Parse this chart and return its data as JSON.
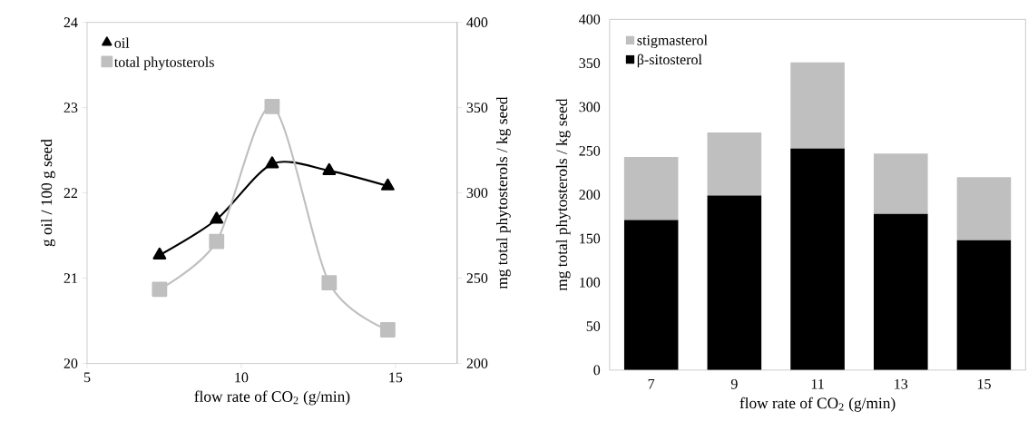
{
  "chart_data": [
    {
      "type": "line",
      "xlabel": "flow rate of CO$_{2}$ (g/min)",
      "ylabel": "g oil / 100 g seed",
      "y2label": "mg total phytosterols / kg seed",
      "x": [
        7.35,
        9.2,
        11.0,
        12.85,
        14.75
      ],
      "xlim": [
        5,
        17
      ],
      "xticks": [
        5,
        10,
        15
      ],
      "ylim": [
        20,
        24
      ],
      "yticks": [
        20,
        21,
        22,
        23,
        24
      ],
      "y2lim": [
        200,
        400
      ],
      "y2ticks": [
        200,
        250,
        300,
        350,
        400
      ],
      "legend": "top left",
      "series": [
        {
          "name": "oil",
          "color": "#000000",
          "marker": "triangle",
          "values": [
            21.27,
            21.69,
            22.34,
            22.26,
            22.08
          ]
        },
        {
          "name": "total phytosterols",
          "color": "#bfbfbf",
          "marker": "square",
          "axis": "y2",
          "values": [
            243.5,
            271.5,
            350.7,
            247.3,
            219.7
          ]
        }
      ]
    },
    {
      "type": "bar",
      "stacked": true,
      "xlabel": "flow rate of CO$_{2}$ (g/min)",
      "ylabel": "mg total phytosterols / kg seed",
      "categories": [
        "7",
        "9",
        "11",
        "13",
        "15"
      ],
      "ylim": [
        0,
        400
      ],
      "yticks": [
        0,
        50,
        100,
        150,
        200,
        250,
        300,
        350,
        400
      ],
      "legend": "top left",
      "series": [
        {
          "name": "β-sitosterol",
          "color": "#000000",
          "values": [
            171,
            199,
            253,
            178,
            148
          ]
        },
        {
          "name": "stigmasterol",
          "color": "#bfbfbf",
          "values": [
            72,
            72,
            98,
            69,
            72
          ]
        }
      ]
    }
  ]
}
